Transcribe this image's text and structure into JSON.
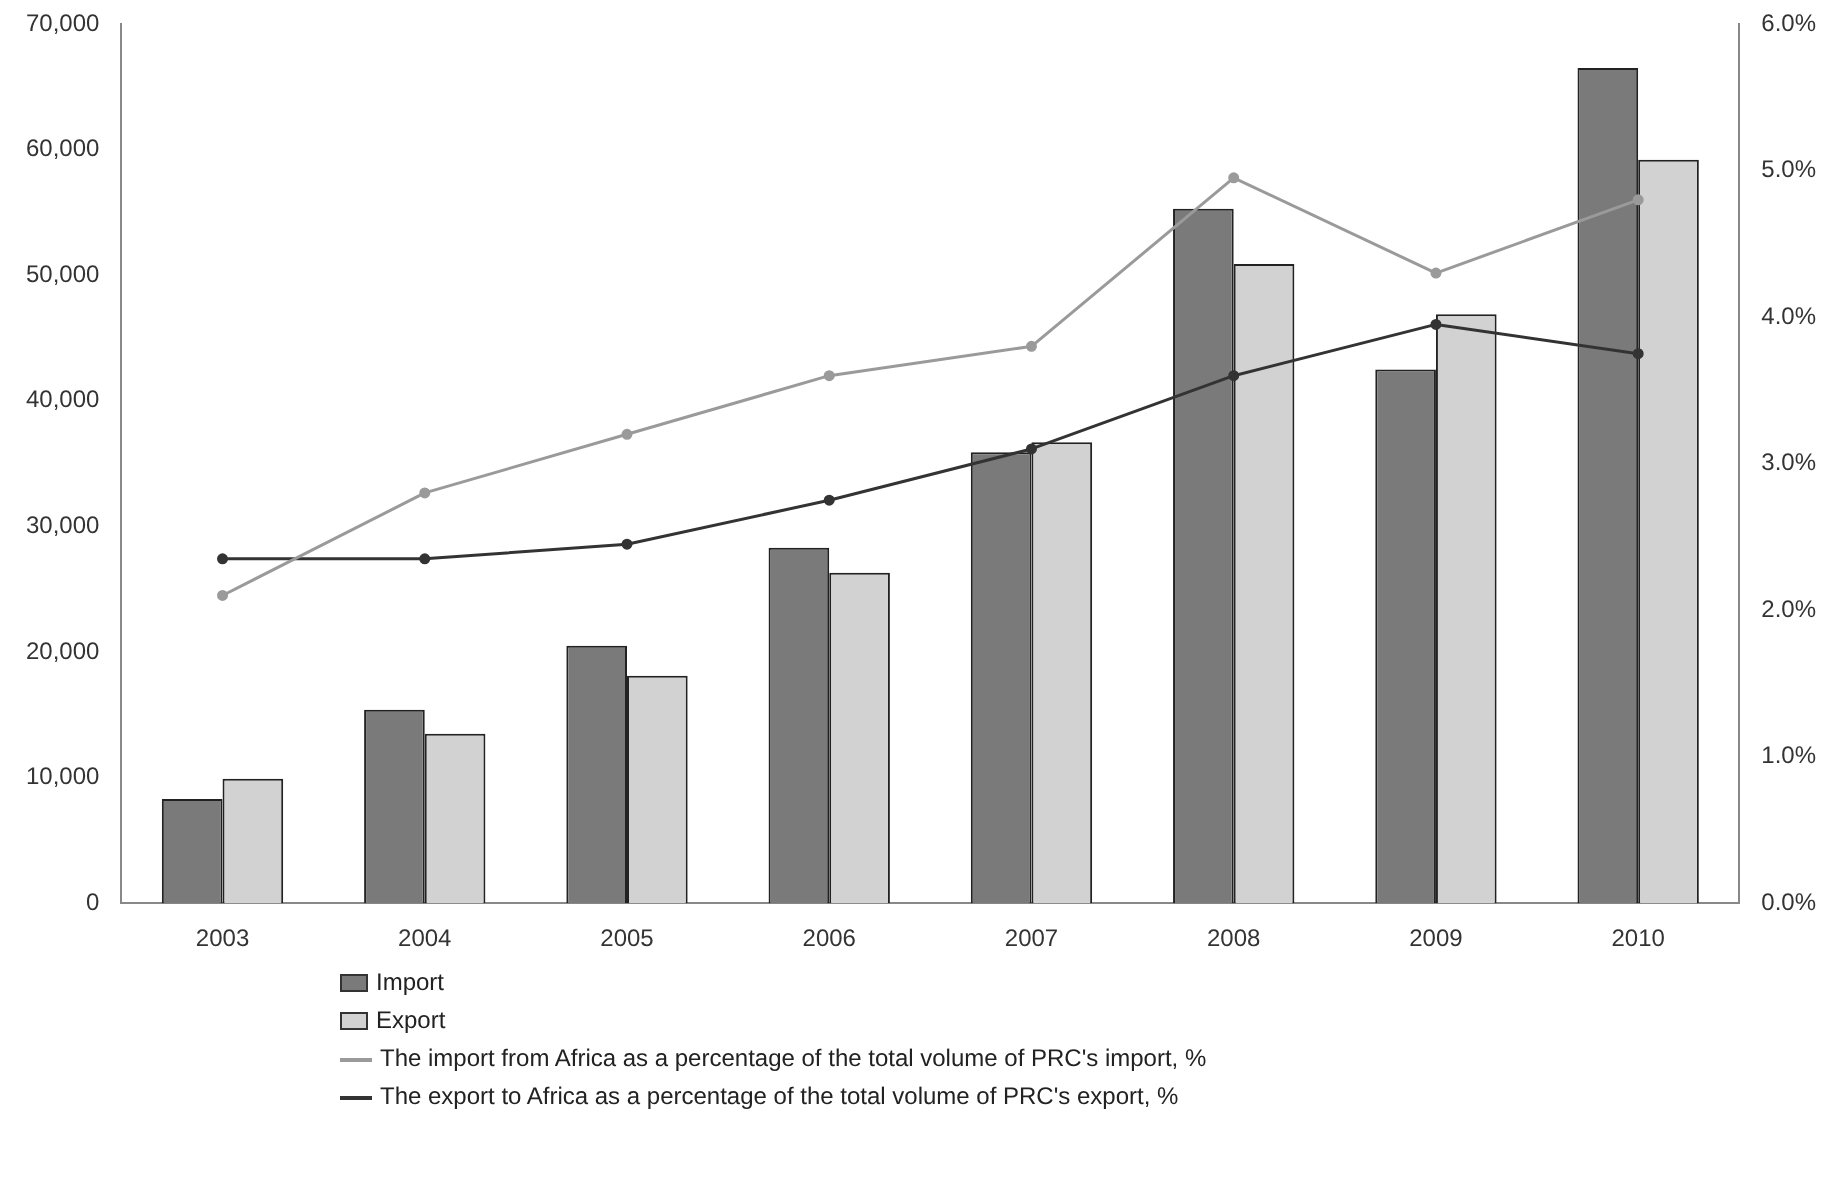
{
  "chart_data": {
    "type": "bar",
    "categories": [
      "2003",
      "2004",
      "2005",
      "2006",
      "2007",
      "2008",
      "2009",
      "2010"
    ],
    "series": [
      {
        "name": "Import",
        "color": "#7a7a7a",
        "values": [
          8300,
          15400,
          20500,
          28300,
          35900,
          55300,
          42500,
          66500
        ]
      },
      {
        "name": "Export",
        "color": "#d2d2d2",
        "values": [
          9900,
          13500,
          18100,
          26300,
          36700,
          50900,
          46900,
          59200
        ]
      },
      {
        "name": "The import from Africa as a percentage of the total volume of PRC's import, %",
        "type": "line",
        "axis": "y2",
        "color": "#9a9a9a",
        "values": [
          2.1,
          2.8,
          3.2,
          3.6,
          3.8,
          4.95,
          4.3,
          4.8
        ]
      },
      {
        "name": "The export to Africa as a percentage of the total volume of PRC's export, %",
        "type": "line",
        "axis": "y2",
        "color": "#333333",
        "values": [
          2.35,
          2.35,
          2.45,
          2.75,
          3.1,
          3.6,
          3.95,
          3.75
        ]
      }
    ],
    "ylim": [
      0,
      70000
    ],
    "yticks": [
      0,
      {
        "value": 10000,
        "label": "10,000"
      },
      {
        "value": 20000,
        "label": "20,000"
      },
      {
        "value": 30000,
        "label": "30,000"
      },
      {
        "value": 40000,
        "label": "40,000"
      },
      {
        "value": 50000,
        "label": "50,000"
      },
      {
        "value": 60000,
        "label": "60,000"
      },
      {
        "value": 70000,
        "label": "70,000"
      }
    ],
    "y2lim": [
      0,
      6
    ],
    "y2ticks": [
      {
        "value": 0,
        "label": "0.0%"
      },
      {
        "value": 1,
        "label": "1.0%"
      },
      {
        "value": 2,
        "label": "2.0%"
      },
      {
        "value": 3,
        "label": "3.0%"
      },
      {
        "value": 4,
        "label": "4.0%"
      },
      {
        "value": 5,
        "label": "5.0%"
      },
      {
        "value": 6,
        "label": "6.0%"
      }
    ],
    "grid": false,
    "legend": "bottom",
    "marker": "circle",
    "line_style": "solid"
  }
}
